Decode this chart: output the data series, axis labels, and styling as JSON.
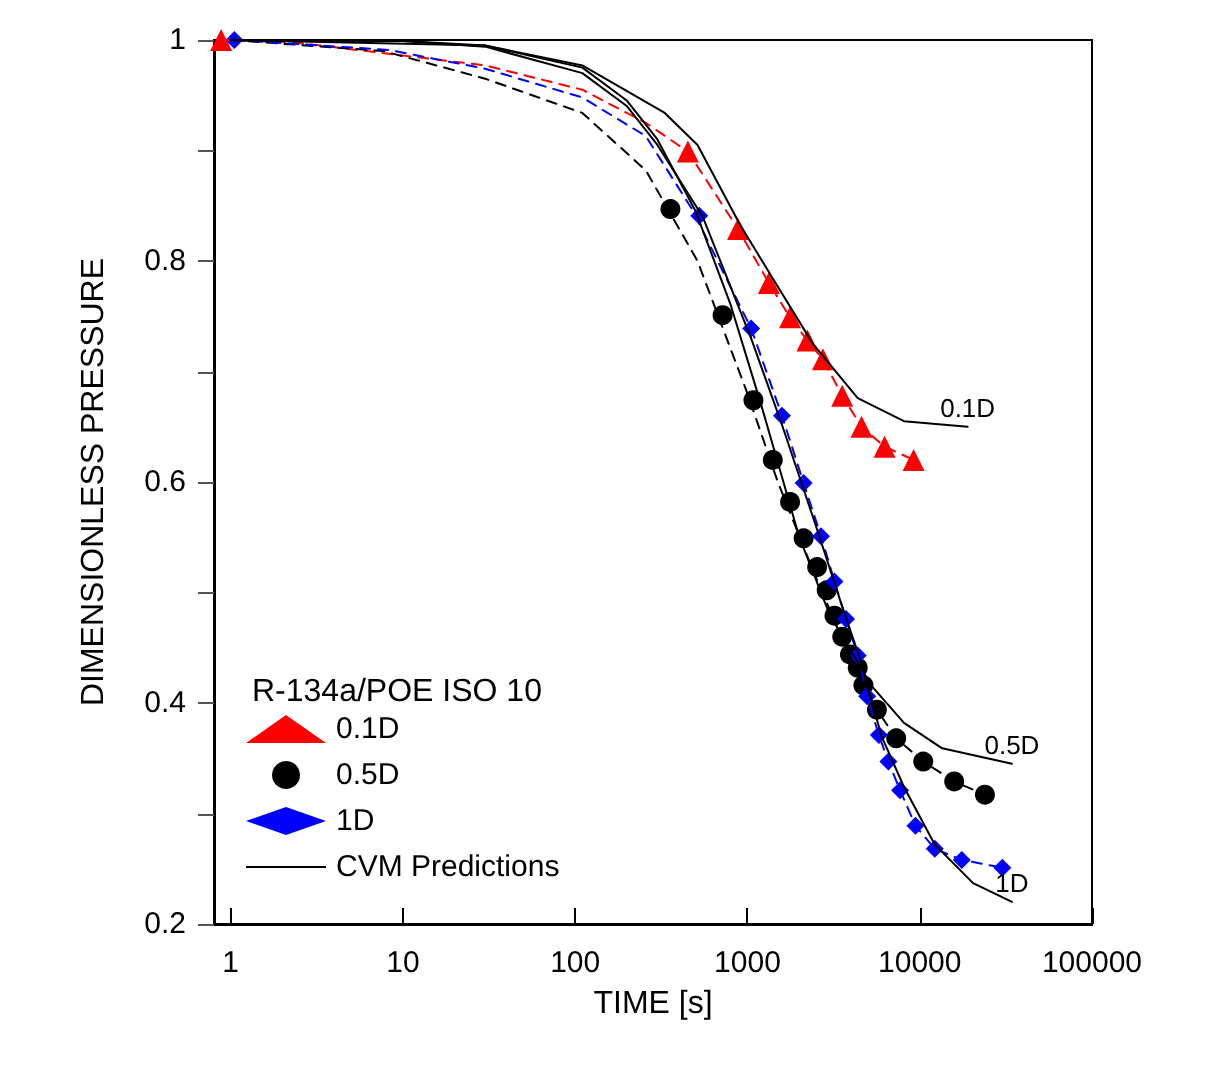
{
  "chart_data": {
    "type": "scatter",
    "xlabel": "TIME [s]",
    "ylabel": "DIMENSIONLESS PRESSURE",
    "legend_title": "R-134a/POE ISO 10",
    "log": "x",
    "legend": "bottom left",
    "grid": false,
    "xlim": [
      0.8,
      100000
    ],
    "xticks": [
      1,
      10,
      100,
      1000,
      10000,
      100000
    ],
    "ylim": [
      0.2,
      1
    ],
    "yticks": [
      0.2,
      {
        "value": 0.3,
        "label": null
      },
      0.4,
      {
        "value": 0.5,
        "label": null
      },
      0.6,
      {
        "value": 0.7,
        "label": null
      },
      0.8,
      {
        "value": 0.9,
        "label": null
      },
      1
    ],
    "series": [
      {
        "type": "line",
        "line_style": "dashed",
        "marker": "none",
        "color": "#ff0000",
        "x": [
          0.88,
          2.3,
          30,
          110,
          257,
          451,
          881,
          1331,
          1767,
          2228,
          2742,
          3548,
          4590,
          6250,
          9210
        ],
        "values": [
          1,
          0.998,
          0.977,
          0.955,
          0.925,
          0.899,
          0.829,
          0.78,
          0.749,
          0.728,
          0.711,
          0.678,
          0.65,
          0.632,
          0.62
        ]
      },
      {
        "type": "line",
        "line_style": "dashed",
        "marker": "none",
        "color": "#000000",
        "x": [
          1,
          7.7,
          30,
          110,
          257,
          513,
          1000,
          1500,
          2400,
          3500,
          4710,
          5640,
          7300,
          10480,
          15850,
          23900
        ],
        "values": [
          1,
          0.99,
          0.965,
          0.934,
          0.882,
          0.8,
          0.68,
          0.6,
          0.52,
          0.46,
          0.416,
          0.394,
          0.368,
          0.347,
          0.329,
          0.317
        ]
      },
      {
        "type": "line",
        "line_style": "dashed",
        "marker": "none",
        "color": "#0000ff",
        "x": [
          1.05,
          8.3,
          30,
          110,
          257,
          476,
          1050,
          1585,
          2118,
          2672,
          3199,
          3733,
          4365,
          4955,
          5790,
          6580,
          7690,
          9440,
          12220,
          17540,
          30150
        ],
        "values": [
          1,
          0.991,
          0.974,
          0.948,
          0.913,
          0.847,
          0.739,
          0.66,
          0.599,
          0.551,
          0.51,
          0.476,
          0.443,
          0.406,
          0.371,
          0.347,
          0.321,
          0.289,
          0.268,
          0.258,
          0.251
        ]
      },
      {
        "name": "0.1D",
        "marker": "triangle",
        "color": "#ff0000",
        "x": [
          0.88,
          451,
          881,
          1331,
          1767,
          2228,
          2742,
          3548,
          4590,
          6250,
          9210
        ],
        "values": [
          1,
          0.899,
          0.829,
          0.78,
          0.749,
          0.728,
          0.711,
          0.678,
          0.65,
          0.632,
          0.62
        ]
      },
      {
        "name": "0.5D",
        "marker": "circle",
        "color": "#000000",
        "x": [
          357,
          717,
          1083,
          1403,
          1767,
          2118,
          2537,
          2884,
          3199,
          3548,
          3935,
          4365,
          4710,
          5640,
          7300,
          10480,
          15850,
          23900
        ],
        "values": [
          0.847,
          0.751,
          0.674,
          0.62,
          0.582,
          0.549,
          0.523,
          0.502,
          0.479,
          0.46,
          0.444,
          0.432,
          0.416,
          0.394,
          0.368,
          0.347,
          0.329,
          0.317
        ]
      },
      {
        "name": "1D",
        "marker": "diamond",
        "color": "#0000ff",
        "x": [
          1.05,
          525,
          1050,
          1585,
          2118,
          2672,
          3199,
          3733,
          4365,
          4955,
          5790,
          6580,
          7690,
          9440,
          12220,
          17540,
          30150
        ],
        "values": [
          1,
          0.841,
          0.739,
          0.66,
          0.599,
          0.551,
          0.51,
          0.476,
          0.443,
          0.406,
          0.371,
          0.347,
          0.321,
          0.289,
          0.268,
          0.258,
          0.251
        ]
      },
      {
        "name": "CVM Predictions",
        "type": "line",
        "line_style": "solid",
        "marker": "none",
        "color": "#000000",
        "x": [
          1,
          30,
          110,
          331,
          513,
          904,
          1380,
          2400,
          4365,
          8100,
          18970
        ],
        "values": [
          1,
          0.995,
          0.977,
          0.934,
          0.905,
          0.833,
          0.786,
          0.725,
          0.676,
          0.655,
          0.65
        ]
      },
      {
        "type": "line",
        "line_style": "solid",
        "marker": "none",
        "color": "#000000",
        "x": [
          1,
          10,
          30,
          110,
          200,
          300,
          500,
          800,
          1200,
          2000,
          3000,
          5220,
          8100,
          13500,
          34300
        ],
        "values": [
          1,
          0.999,
          0.995,
          0.975,
          0.945,
          0.91,
          0.845,
          0.76,
          0.67,
          0.55,
          0.48,
          0.416,
          0.382,
          0.359,
          0.345
        ]
      },
      {
        "type": "line",
        "line_style": "solid",
        "marker": "none",
        "color": "#000000",
        "x": [
          1,
          10,
          30,
          110,
          200,
          300,
          550,
          1050,
          1600,
          2500,
          3500,
          4500,
          6000,
          8100,
          12220,
          20400,
          34300
        ],
        "values": [
          1,
          0.999,
          0.994,
          0.97,
          0.94,
          0.905,
          0.84,
          0.73,
          0.65,
          0.56,
          0.49,
          0.44,
          0.37,
          0.324,
          0.272,
          0.237,
          0.22
        ]
      }
    ],
    "annotations": [
      "0.1D",
      "0.5D",
      "1D"
    ]
  }
}
